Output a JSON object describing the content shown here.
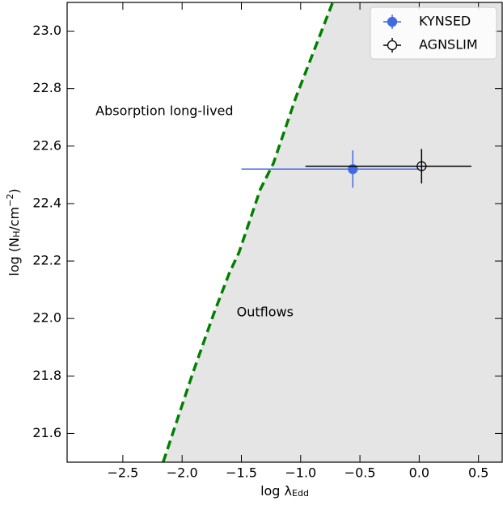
{
  "chart_data": {
    "type": "scatter",
    "xlabel": [
      {
        "text": "log λ"
      },
      {
        "sub": "Edd"
      }
    ],
    "ylabel": [
      {
        "text": "log (N"
      },
      {
        "sub": "H"
      },
      {
        "text": "/cm"
      },
      {
        "sup": "−2"
      },
      {
        "text": ")"
      }
    ],
    "xlim": [
      -2.97,
      0.7
    ],
    "ylim": [
      21.5,
      23.1
    ],
    "xticks": [
      {
        "value": -2.5,
        "label": "−2.5"
      },
      {
        "value": -2.0,
        "label": "−2.0"
      },
      {
        "value": -1.5,
        "label": "−1.5"
      },
      {
        "value": -1.0,
        "label": "−1.0"
      },
      {
        "value": -0.5,
        "label": "−0.5"
      },
      {
        "value": 0.0,
        "label": "0.0"
      },
      0.5
    ],
    "yticks": [
      21.6,
      21.8,
      {
        "value": 22.0,
        "label": "22.0"
      },
      22.2,
      22.4,
      22.6,
      22.8,
      {
        "value": 23.0,
        "label": "23.0"
      }
    ],
    "legend": "upper right",
    "boundary": {
      "color": "#008000",
      "fill_color": "#e5e5e5",
      "x": [
        -2.16,
        -1.91,
        -1.73,
        -1.6,
        -1.52,
        -1.34,
        -1.23,
        -1.04,
        -0.73
      ],
      "y": [
        21.5,
        21.81,
        22.02,
        22.16,
        22.23,
        22.45,
        22.54,
        22.77,
        23.1
      ]
    },
    "series": [
      {
        "name": "KYNSED",
        "color": "#4169e1",
        "filled": true,
        "x": [
          -0.56
        ],
        "y": [
          22.52
        ],
        "xerr_low": [
          0.94
        ],
        "xerr_high": [
          0.56
        ],
        "yerr": [
          0.065
        ]
      },
      {
        "name": "AGNSLIM",
        "color": "#000000",
        "filled": false,
        "x": [
          0.02
        ],
        "y": [
          22.53
        ],
        "xerr_low": [
          0.98
        ],
        "xerr_high": [
          0.42
        ],
        "yerr": [
          0.06
        ]
      }
    ],
    "annotations": [
      {
        "text": "Absorption long-lived",
        "x": -2.73,
        "y": 22.72
      },
      {
        "text": "Outflows",
        "x": -1.54,
        "y": 22.02
      }
    ]
  }
}
